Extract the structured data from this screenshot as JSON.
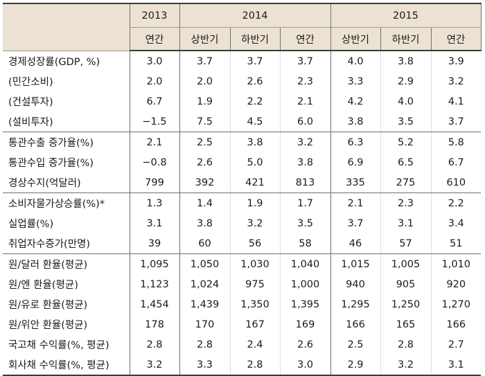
{
  "header": {
    "years": [
      "2013",
      "2014",
      "2015"
    ],
    "subcols": [
      "연간",
      "상반기",
      "하반기",
      "연간",
      "상반기",
      "하반기",
      "연간"
    ]
  },
  "rows": [
    {
      "label": "경제성장률(GDP, %)",
      "values": [
        "3.0",
        "3.7",
        "3.7",
        "3.7",
        "4.0",
        "3.8",
        "3.9"
      ]
    },
    {
      "label": "(민간소비)",
      "values": [
        "2.0",
        "2.0",
        "2.6",
        "2.3",
        "3.3",
        "2.9",
        "3.2"
      ]
    },
    {
      "label": "(건설투자)",
      "values": [
        "6.7",
        "1.9",
        "2.2",
        "2.1",
        "4.2",
        "4.0",
        "4.1"
      ]
    },
    {
      "label": "(설비투자)",
      "values": [
        "−1.5",
        "7.5",
        "4.5",
        "6.0",
        "3.8",
        "3.5",
        "3.7"
      ]
    },
    {
      "label": "통관수출 증가율(%)",
      "values": [
        "2.1",
        "2.5",
        "3.8",
        "3.2",
        "6.3",
        "5.2",
        "5.8"
      ]
    },
    {
      "label": "통관수입 증가율(%)",
      "values": [
        "−0.8",
        "2.6",
        "5.0",
        "3.8",
        "6.9",
        "6.5",
        "6.7"
      ]
    },
    {
      "label": "경상수지(억달러)",
      "values": [
        "799",
        "392",
        "421",
        "813",
        "335",
        "275",
        "610"
      ]
    },
    {
      "label": "소비자물가상승률(%)*",
      "values": [
        "1.3",
        "1.4",
        "1.9",
        "1.7",
        "2.1",
        "2.3",
        "2.2"
      ]
    },
    {
      "label": "실업률(%)",
      "values": [
        "3.1",
        "3.8",
        "3.2",
        "3.5",
        "3.7",
        "3.1",
        "3.4"
      ]
    },
    {
      "label": "취업자수증가(만명)",
      "values": [
        "39",
        "60",
        "56",
        "58",
        "46",
        "57",
        "51"
      ]
    },
    {
      "label": "원/달러 환율(평균)",
      "values": [
        "1,095",
        "1,050",
        "1,030",
        "1,040",
        "1,015",
        "1,005",
        "1,010"
      ]
    },
    {
      "label": "원/엔 환율(평균)",
      "values": [
        "1,123",
        "1,024",
        "975",
        "1,000",
        "940",
        "905",
        "920"
      ]
    },
    {
      "label": "원/유로 환율(평균)",
      "values": [
        "1,454",
        "1,439",
        "1,350",
        "1,395",
        "1,295",
        "1,250",
        "1,270"
      ]
    },
    {
      "label": "원/위안 환율(평균)",
      "values": [
        "178",
        "170",
        "167",
        "169",
        "166",
        "165",
        "166"
      ]
    },
    {
      "label": "국고채 수익률(%, 평균)",
      "values": [
        "2.8",
        "2.8",
        "2.4",
        "2.6",
        "2.5",
        "2.8",
        "2.7"
      ]
    },
    {
      "label": "회사채 수익률(%, 평균)",
      "values": [
        "3.2",
        "3.3",
        "2.8",
        "3.0",
        "2.9",
        "3.2",
        "3.1"
      ]
    }
  ]
}
